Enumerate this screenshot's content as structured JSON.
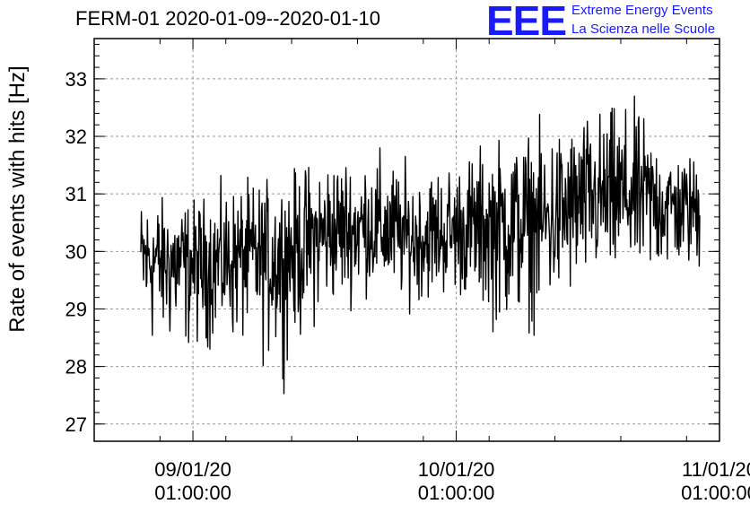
{
  "chart_data": {
    "type": "line",
    "title": "FERM-01 2020-01-09--2020-01-10",
    "ylabel": "Rate of events with hits [Hz]",
    "xlabel": "",
    "ylim": [
      26.7,
      33.7
    ],
    "yticks": [
      27,
      28,
      29,
      30,
      31,
      32,
      33
    ],
    "xlim": [
      "2020-01-08 16:00:00",
      "2020-01-11 01:00:00"
    ],
    "xticks": [
      {
        "value": "2020-01-09 01:00:00",
        "label_date": "09/01/20",
        "label_time": "01:00:00"
      },
      {
        "value": "2020-01-10 01:00:00",
        "label_date": "10/01/20",
        "label_time": "01:00:00"
      },
      {
        "value": "2020-01-11 01:00:00",
        "label_date": "11/01/20",
        "label_time": "01:00:00"
      }
    ],
    "grid": true,
    "series": [
      {
        "color": "#000000",
        "x": [
          "2020-01-08 21:00:00",
          "2020-01-09 01:00:00",
          "2020-01-09 05:00:00",
          "2020-01-09 09:00:00",
          "2020-01-09 13:00:00",
          "2020-01-09 17:00:00",
          "2020-01-09 21:00:00",
          "2020-01-10 01:00:00",
          "2020-01-10 05:00:00",
          "2020-01-10 09:00:00",
          "2020-01-10 13:00:00",
          "2020-01-10 17:00:00",
          "2020-01-10 21:00:00"
        ],
        "mean": [
          29.9,
          29.8,
          29.9,
          30.0,
          30.3,
          30.4,
          30.2,
          30.3,
          30.5,
          30.5,
          30.9,
          31.0,
          30.8
        ],
        "min": [
          27.7,
          27.8,
          27.9,
          27.3,
          28.5,
          28.9,
          28.7,
          28.9,
          28.0,
          28.2,
          28.8,
          28.8,
          29.2
        ],
        "max": [
          31.3,
          31.3,
          31.6,
          31.7,
          32.2,
          32.3,
          31.9,
          32.1,
          32.5,
          32.7,
          32.9,
          33.1,
          32.0
        ]
      }
    ]
  },
  "logo": {
    "mark": "EEE",
    "line1": "Extreme Energy Events",
    "line2": "La Scienza nelle Scuole"
  },
  "colors": {
    "logo": "#1a1aff",
    "grid": "#999999",
    "series": "#000000"
  }
}
